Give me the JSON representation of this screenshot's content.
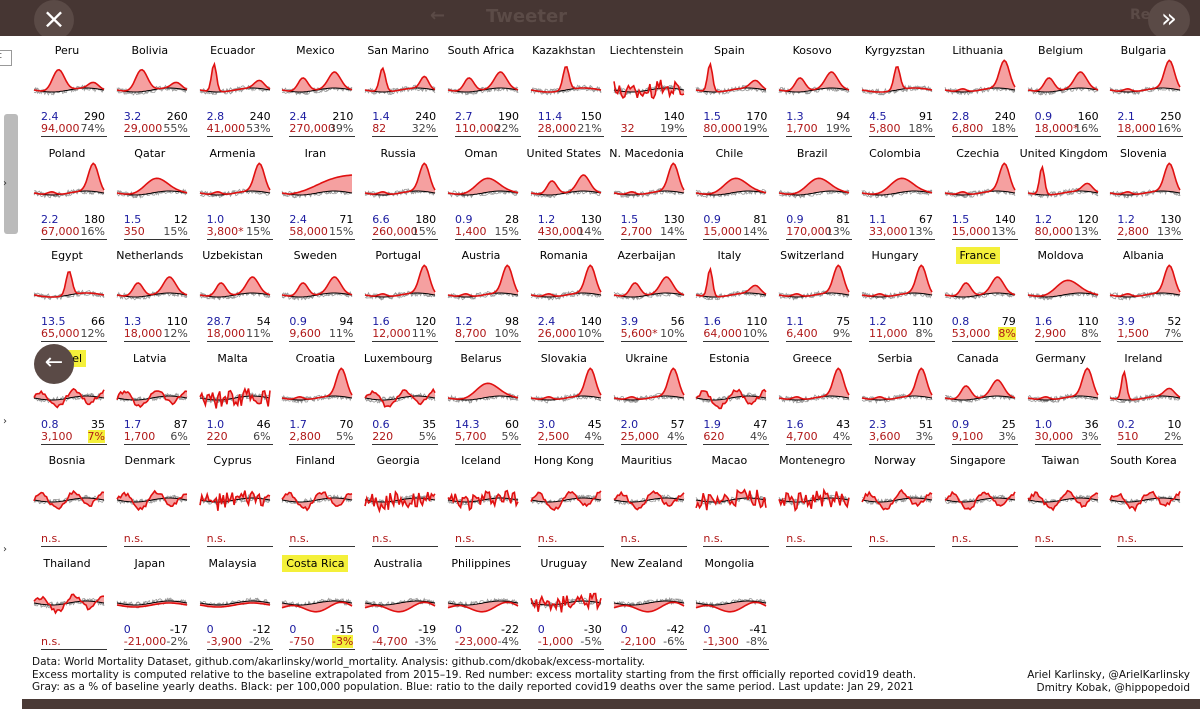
{
  "window": {
    "close_label": "×",
    "expand_label": "»",
    "back_label": "←",
    "ghost_title": "Tweeter",
    "ghost_left_arrow": "←",
    "ghost_right": "Re"
  },
  "sidebar": {
    "box_label": "c",
    "chevrons": [
      "›",
      "›",
      "›"
    ]
  },
  "countries": [
    {
      "name": "Peru",
      "ratio": "2.4",
      "per100k": "290",
      "deaths": "94,000",
      "pct": "74%",
      "hl_name": false,
      "hl_pct": false,
      "shape": "peak_mid"
    },
    {
      "name": "Bolivia",
      "ratio": "3.2",
      "per100k": "260",
      "deaths": "29,000",
      "pct": "55%",
      "hl_name": false,
      "hl_pct": false,
      "shape": "peak_mid"
    },
    {
      "name": "Ecuador",
      "ratio": "2.8",
      "per100k": "240",
      "deaths": "41,000",
      "pct": "53%",
      "hl_name": false,
      "hl_pct": false,
      "shape": "spike_left"
    },
    {
      "name": "Mexico",
      "ratio": "2.4",
      "per100k": "210",
      "deaths": "270,000",
      "pct": "39%",
      "hl_name": false,
      "hl_pct": false,
      "shape": "double"
    },
    {
      "name": "San Marino",
      "ratio": "1.4",
      "per100k": "240",
      "deaths": "82",
      "pct": "32%",
      "hl_name": false,
      "hl_pct": false,
      "shape": "spike_noisy"
    },
    {
      "name": "South Africa",
      "ratio": "2.7",
      "per100k": "190",
      "deaths": "110,000",
      "pct": "22%",
      "hl_name": false,
      "hl_pct": false,
      "shape": "double"
    },
    {
      "name": "Kazakhstan",
      "ratio": "11.4",
      "per100k": "150",
      "deaths": "28,000",
      "pct": "21%",
      "hl_name": false,
      "hl_pct": false,
      "shape": "spike_mid"
    },
    {
      "name": "Liechtenstein",
      "ratio": "",
      "per100k": "140",
      "deaths": "32",
      "pct": "19%",
      "hl_name": false,
      "hl_pct": false,
      "shape": "noise"
    },
    {
      "name": "Spain",
      "ratio": "1.5",
      "per100k": "170",
      "deaths": "80,000",
      "pct": "19%",
      "hl_name": false,
      "hl_pct": false,
      "shape": "spike_left"
    },
    {
      "name": "Kosovo",
      "ratio": "1.3",
      "per100k": "94",
      "deaths": "1,700",
      "pct": "19%",
      "hl_name": false,
      "hl_pct": false,
      "shape": "double"
    },
    {
      "name": "Kyrgyzstan",
      "ratio": "4.5",
      "per100k": "91",
      "deaths": "5,800",
      "pct": "18%",
      "hl_name": false,
      "hl_pct": false,
      "shape": "spike_mid"
    },
    {
      "name": "Lithuania",
      "ratio": "2.8",
      "per100k": "240",
      "deaths": "6,800",
      "pct": "18%",
      "hl_name": false,
      "hl_pct": false,
      "shape": "rise_end"
    },
    {
      "name": "Belgium",
      "ratio": "0.9",
      "per100k": "160",
      "deaths": "18,000*",
      "pct": "16%",
      "hl_name": false,
      "hl_pct": false,
      "shape": "double"
    },
    {
      "name": "Bulgaria",
      "ratio": "2.1",
      "per100k": "250",
      "deaths": "18,000",
      "pct": "16%",
      "hl_name": false,
      "hl_pct": false,
      "shape": "rise_end"
    },
    {
      "name": "Poland",
      "ratio": "2.2",
      "per100k": "180",
      "deaths": "67,000",
      "pct": "16%",
      "hl_name": false,
      "hl_pct": false,
      "shape": "rise_end"
    },
    {
      "name": "Qatar",
      "ratio": "1.5",
      "per100k": "12",
      "deaths": "350",
      "pct": "15%",
      "hl_name": false,
      "hl_pct": false,
      "shape": "hump"
    },
    {
      "name": "Armenia",
      "ratio": "1.0",
      "per100k": "130",
      "deaths": "3,800*",
      "pct": "15%",
      "hl_name": false,
      "hl_pct": false,
      "shape": "rise_end"
    },
    {
      "name": "Iran",
      "ratio": "2.4",
      "per100k": "71",
      "deaths": "58,000",
      "pct": "15%",
      "hl_name": false,
      "hl_pct": false,
      "shape": "ramp"
    },
    {
      "name": "Russia",
      "ratio": "6.6",
      "per100k": "180",
      "deaths": "260,000",
      "pct": "15%",
      "hl_name": false,
      "hl_pct": false,
      "shape": "rise_end"
    },
    {
      "name": "Oman",
      "ratio": "0.9",
      "per100k": "28",
      "deaths": "1,400",
      "pct": "15%",
      "hl_name": false,
      "hl_pct": false,
      "shape": "hump"
    },
    {
      "name": "United States",
      "ratio": "1.2",
      "per100k": "130",
      "deaths": "430,000",
      "pct": "14%",
      "hl_name": false,
      "hl_pct": false,
      "shape": "double"
    },
    {
      "name": "N. Macedonia",
      "ratio": "1.5",
      "per100k": "130",
      "deaths": "2,700",
      "pct": "14%",
      "hl_name": false,
      "hl_pct": false,
      "shape": "rise_end"
    },
    {
      "name": "Chile",
      "ratio": "0.9",
      "per100k": "81",
      "deaths": "15,000",
      "pct": "14%",
      "hl_name": false,
      "hl_pct": false,
      "shape": "hump"
    },
    {
      "name": "Brazil",
      "ratio": "0.9",
      "per100k": "81",
      "deaths": "170,000",
      "pct": "13%",
      "hl_name": false,
      "hl_pct": false,
      "shape": "hump"
    },
    {
      "name": "Colombia",
      "ratio": "1.1",
      "per100k": "67",
      "deaths": "33,000",
      "pct": "13%",
      "hl_name": false,
      "hl_pct": false,
      "shape": "hump"
    },
    {
      "name": "Czechia",
      "ratio": "1.5",
      "per100k": "140",
      "deaths": "15,000",
      "pct": "13%",
      "hl_name": false,
      "hl_pct": false,
      "shape": "rise_end"
    },
    {
      "name": "United Kingdom",
      "ratio": "1.2",
      "per100k": "120",
      "deaths": "80,000",
      "pct": "13%",
      "hl_name": false,
      "hl_pct": false,
      "shape": "spike_left"
    },
    {
      "name": "Slovenia",
      "ratio": "1.2",
      "per100k": "130",
      "deaths": "2,800",
      "pct": "13%",
      "hl_name": false,
      "hl_pct": false,
      "shape": "rise_end"
    },
    {
      "name": "Egypt",
      "ratio": "13.5",
      "per100k": "66",
      "deaths": "65,000",
      "pct": "12%",
      "hl_name": false,
      "hl_pct": false,
      "shape": "spike_mid"
    },
    {
      "name": "Netherlands",
      "ratio": "1.3",
      "per100k": "110",
      "deaths": "18,000",
      "pct": "12%",
      "hl_name": false,
      "hl_pct": false,
      "shape": "double"
    },
    {
      "name": "Uzbekistan",
      "ratio": "28.7",
      "per100k": "54",
      "deaths": "18,000",
      "pct": "11%",
      "hl_name": false,
      "hl_pct": false,
      "shape": "double"
    },
    {
      "name": "Sweden",
      "ratio": "0.9",
      "per100k": "94",
      "deaths": "9,600",
      "pct": "11%",
      "hl_name": false,
      "hl_pct": false,
      "shape": "double"
    },
    {
      "name": "Portugal",
      "ratio": "1.6",
      "per100k": "120",
      "deaths": "12,000",
      "pct": "11%",
      "hl_name": false,
      "hl_pct": false,
      "shape": "rise_end"
    },
    {
      "name": "Austria",
      "ratio": "1.2",
      "per100k": "98",
      "deaths": "8,700",
      "pct": "10%",
      "hl_name": false,
      "hl_pct": false,
      "shape": "rise_end"
    },
    {
      "name": "Romania",
      "ratio": "2.4",
      "per100k": "140",
      "deaths": "26,000",
      "pct": "10%",
      "hl_name": false,
      "hl_pct": false,
      "shape": "rise_end"
    },
    {
      "name": "Azerbaijan",
      "ratio": "3.9",
      "per100k": "56",
      "deaths": "5,600*",
      "pct": "10%",
      "hl_name": false,
      "hl_pct": false,
      "shape": "double"
    },
    {
      "name": "Italy",
      "ratio": "1.6",
      "per100k": "110",
      "deaths": "64,000",
      "pct": "10%",
      "hl_name": false,
      "hl_pct": false,
      "shape": "spike_left"
    },
    {
      "name": "Switzerland",
      "ratio": "1.1",
      "per100k": "75",
      "deaths": "6,400",
      "pct": "9%",
      "hl_name": false,
      "hl_pct": false,
      "shape": "rise_end"
    },
    {
      "name": "Hungary",
      "ratio": "1.2",
      "per100k": "110",
      "deaths": "11,000",
      "pct": "8%",
      "hl_name": false,
      "hl_pct": false,
      "shape": "rise_end"
    },
    {
      "name": "France",
      "ratio": "0.8",
      "per100k": "79",
      "deaths": "53,000",
      "pct": "8%",
      "hl_name": true,
      "hl_pct": true,
      "shape": "double"
    },
    {
      "name": "Moldova",
      "ratio": "1.6",
      "per100k": "110",
      "deaths": "2,900",
      "pct": "8%",
      "hl_name": false,
      "hl_pct": false,
      "shape": "hump"
    },
    {
      "name": "Albania",
      "ratio": "3.9",
      "per100k": "52",
      "deaths": "1,500",
      "pct": "7%",
      "hl_name": false,
      "hl_pct": false,
      "shape": "rise_end"
    },
    {
      "name": "Israel",
      "ratio": "0.8",
      "per100k": "35",
      "deaths": "3,100",
      "pct": "7%",
      "hl_name": true,
      "hl_pct": true,
      "shape": "wavy"
    },
    {
      "name": "Latvia",
      "ratio": "1.7",
      "per100k": "87",
      "deaths": "1,700",
      "pct": "6%",
      "hl_name": false,
      "hl_pct": false,
      "shape": "wavy"
    },
    {
      "name": "Malta",
      "ratio": "1.0",
      "per100k": "46",
      "deaths": "220",
      "pct": "6%",
      "hl_name": false,
      "hl_pct": false,
      "shape": "noise"
    },
    {
      "name": "Croatia",
      "ratio": "1.7",
      "per100k": "70",
      "deaths": "2,800",
      "pct": "5%",
      "hl_name": false,
      "hl_pct": false,
      "shape": "rise_end"
    },
    {
      "name": "Luxembourg",
      "ratio": "0.6",
      "per100k": "35",
      "deaths": "220",
      "pct": "5%",
      "hl_name": false,
      "hl_pct": false,
      "shape": "wavy"
    },
    {
      "name": "Belarus",
      "ratio": "14.3",
      "per100k": "60",
      "deaths": "5,700",
      "pct": "5%",
      "hl_name": false,
      "hl_pct": false,
      "shape": "hump"
    },
    {
      "name": "Slovakia",
      "ratio": "3.0",
      "per100k": "45",
      "deaths": "2,500",
      "pct": "4%",
      "hl_name": false,
      "hl_pct": false,
      "shape": "rise_end"
    },
    {
      "name": "Ukraine",
      "ratio": "2.0",
      "per100k": "57",
      "deaths": "25,000",
      "pct": "4%",
      "hl_name": false,
      "hl_pct": false,
      "shape": "rise_end"
    },
    {
      "name": "Estonia",
      "ratio": "1.9",
      "per100k": "47",
      "deaths": "620",
      "pct": "4%",
      "hl_name": false,
      "hl_pct": false,
      "shape": "wavy"
    },
    {
      "name": "Greece",
      "ratio": "1.6",
      "per100k": "43",
      "deaths": "4,700",
      "pct": "4%",
      "hl_name": false,
      "hl_pct": false,
      "shape": "rise_end"
    },
    {
      "name": "Serbia",
      "ratio": "2.3",
      "per100k": "51",
      "deaths": "3,600",
      "pct": "3%",
      "hl_name": false,
      "hl_pct": false,
      "shape": "rise_end"
    },
    {
      "name": "Canada",
      "ratio": "0.9",
      "per100k": "25",
      "deaths": "9,100",
      "pct": "3%",
      "hl_name": false,
      "hl_pct": false,
      "shape": "double"
    },
    {
      "name": "Germany",
      "ratio": "1.0",
      "per100k": "36",
      "deaths": "30,000",
      "pct": "3%",
      "hl_name": false,
      "hl_pct": false,
      "shape": "rise_end"
    },
    {
      "name": "Ireland",
      "ratio": "0.2",
      "per100k": "10",
      "deaths": "510",
      "pct": "2%",
      "hl_name": false,
      "hl_pct": false,
      "shape": "spike_left"
    },
    {
      "name": "Bosnia",
      "ratio": "",
      "per100k": "",
      "deaths": "n.s.",
      "pct": "",
      "hl_name": false,
      "hl_pct": false,
      "shape": "wavy"
    },
    {
      "name": "Denmark",
      "ratio": "",
      "per100k": "",
      "deaths": "n.s.",
      "pct": "",
      "hl_name": false,
      "hl_pct": false,
      "shape": "wavy"
    },
    {
      "name": "Cyprus",
      "ratio": "",
      "per100k": "",
      "deaths": "n.s.",
      "pct": "",
      "hl_name": false,
      "hl_pct": false,
      "shape": "noise"
    },
    {
      "name": "Finland",
      "ratio": "",
      "per100k": "",
      "deaths": "n.s.",
      "pct": "",
      "hl_name": false,
      "hl_pct": false,
      "shape": "wavy"
    },
    {
      "name": "Georgia",
      "ratio": "",
      "per100k": "",
      "deaths": "n.s.",
      "pct": "",
      "hl_name": false,
      "hl_pct": false,
      "shape": "noise"
    },
    {
      "name": "Iceland",
      "ratio": "",
      "per100k": "",
      "deaths": "n.s.",
      "pct": "",
      "hl_name": false,
      "hl_pct": false,
      "shape": "noise"
    },
    {
      "name": "Hong Kong",
      "ratio": "",
      "per100k": "",
      "deaths": "n.s.",
      "pct": "",
      "hl_name": false,
      "hl_pct": false,
      "shape": "wavy"
    },
    {
      "name": "Mauritius",
      "ratio": "",
      "per100k": "",
      "deaths": "n.s.",
      "pct": "",
      "hl_name": false,
      "hl_pct": false,
      "shape": "wavy"
    },
    {
      "name": "Macao",
      "ratio": "",
      "per100k": "",
      "deaths": "n.s.",
      "pct": "",
      "hl_name": false,
      "hl_pct": false,
      "shape": "noise"
    },
    {
      "name": "Montenegro",
      "ratio": "",
      "per100k": "",
      "deaths": "n.s.",
      "pct": "",
      "hl_name": false,
      "hl_pct": false,
      "shape": "noise"
    },
    {
      "name": "Norway",
      "ratio": "",
      "per100k": "",
      "deaths": "n.s.",
      "pct": "",
      "hl_name": false,
      "hl_pct": false,
      "shape": "wavy"
    },
    {
      "name": "Singapore",
      "ratio": "",
      "per100k": "",
      "deaths": "n.s.",
      "pct": "",
      "hl_name": false,
      "hl_pct": false,
      "shape": "wavy"
    },
    {
      "name": "Taiwan",
      "ratio": "",
      "per100k": "",
      "deaths": "n.s.",
      "pct": "",
      "hl_name": false,
      "hl_pct": false,
      "shape": "wavy"
    },
    {
      "name": "South Korea",
      "ratio": "",
      "per100k": "",
      "deaths": "n.s.",
      "pct": "",
      "hl_name": false,
      "hl_pct": false,
      "shape": "wavy"
    },
    {
      "name": "Thailand",
      "ratio": "",
      "per100k": "",
      "deaths": "n.s.",
      "pct": "",
      "hl_name": false,
      "hl_pct": false,
      "shape": "wavy"
    },
    {
      "name": "Japan",
      "ratio": "0",
      "per100k": "-17",
      "deaths": "-21,000",
      "pct": "-2%",
      "hl_name": false,
      "hl_pct": false,
      "shape": "flat"
    },
    {
      "name": "Malaysia",
      "ratio": "0",
      "per100k": "-12",
      "deaths": "-3,900",
      "pct": "-2%",
      "hl_name": false,
      "hl_pct": false,
      "shape": "flat"
    },
    {
      "name": "Costa Rica",
      "ratio": "0",
      "per100k": "-15",
      "deaths": "-750",
      "pct": "-3%",
      "hl_name": true,
      "hl_pct": true,
      "shape": "dip"
    },
    {
      "name": "Australia",
      "ratio": "0",
      "per100k": "-19",
      "deaths": "-4,700",
      "pct": "-3%",
      "hl_name": false,
      "hl_pct": false,
      "shape": "dip"
    },
    {
      "name": "Philippines",
      "ratio": "0",
      "per100k": "-22",
      "deaths": "-23,000",
      "pct": "-4%",
      "hl_name": false,
      "hl_pct": false,
      "shape": "dip"
    },
    {
      "name": "Uruguay",
      "ratio": "0",
      "per100k": "-30",
      "deaths": "-1,000",
      "pct": "-5%",
      "hl_name": false,
      "hl_pct": false,
      "shape": "noise"
    },
    {
      "name": "New Zealand",
      "ratio": "0",
      "per100k": "-42",
      "deaths": "-2,100",
      "pct": "-6%",
      "hl_name": false,
      "hl_pct": false,
      "shape": "dip"
    },
    {
      "name": "Mongolia",
      "ratio": "0",
      "per100k": "-41",
      "deaths": "-1,300",
      "pct": "-8%",
      "hl_name": false,
      "hl_pct": false,
      "shape": "dip"
    }
  ],
  "footer": {
    "line1": "Data: World Mortality Dataset, github.com/akarlinsky/world_mortality. Analysis: github.com/dkobak/excess-mortality.",
    "line2": "Excess mortality is computed relative to the baseline extrapolated from 2015–19. Red number: excess mortality starting from the first officially reported covid19 death.",
    "line3": "Gray: as a % of baseline yearly deaths. Black: per 100,000 population. Blue: ratio to the daily reported covid19 deaths over the same period. Last update: Jan 29, 2021",
    "credit1": "Ariel Karlinsky, @ArielKarlinsky",
    "credit2": "Dmitry Kobak, @hippopedoid"
  },
  "colors": {
    "excess_fill": "#f5a0a0",
    "excess_line": "#e01010",
    "baseline": "#000000",
    "past_years": "#999999",
    "highlight": "#f4f03a"
  }
}
